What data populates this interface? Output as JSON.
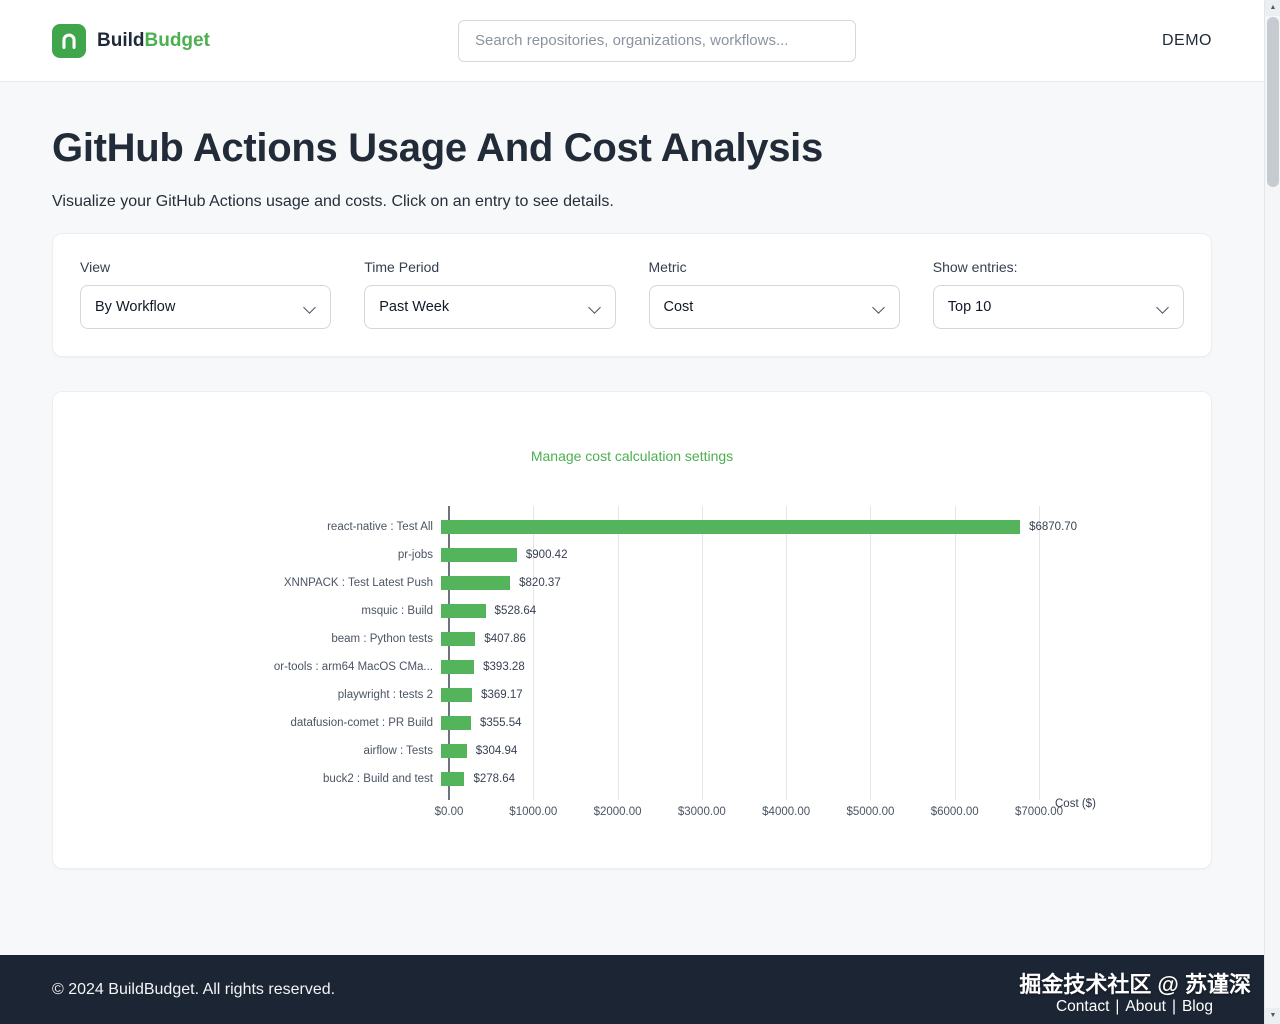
{
  "header": {
    "brand_prefix": "Build",
    "brand_suffix": "Budget",
    "search_placeholder": "Search repositories, organizations, workflows...",
    "demo_label": "DEMO"
  },
  "page": {
    "title": "GitHub Actions Usage And Cost Analysis",
    "subtitle": "Visualize your GitHub Actions usage and costs. Click on an entry to see details."
  },
  "filters": [
    {
      "label": "View",
      "value": "By Workflow"
    },
    {
      "label": "Time Period",
      "value": "Past Week"
    },
    {
      "label": "Metric",
      "value": "Cost"
    },
    {
      "label": "Show entries:",
      "value": "Top 10"
    }
  ],
  "chart": {
    "settings_link": "Manage cost calculation settings"
  },
  "chart_data": {
    "type": "bar",
    "orientation": "horizontal",
    "categories": [
      "react-native : Test All",
      "pr-jobs",
      "XNNPACK : Test Latest Push",
      "msquic : Build",
      "beam : Python tests",
      "or-tools : arm64 MacOS CMa...",
      "playwright : tests 2",
      "datafusion-comet : PR Build",
      "airflow : Tests",
      "buck2 : Build and test"
    ],
    "values": [
      6870.7,
      900.42,
      820.37,
      528.64,
      407.86,
      393.28,
      369.17,
      355.54,
      304.94,
      278.64
    ],
    "value_labels": [
      "$6870.70",
      "$900.42",
      "$820.37",
      "$528.64",
      "$407.86",
      "$393.28",
      "$369.17",
      "$355.54",
      "$304.94",
      "$278.64"
    ],
    "x_ticks": [
      {
        "label": "$0.00",
        "value": 0
      },
      {
        "label": "$1000.00",
        "value": 1000
      },
      {
        "label": "$2000.00",
        "value": 2000
      },
      {
        "label": "$3000.00",
        "value": 3000
      },
      {
        "label": "$4000.00",
        "value": 4000
      },
      {
        "label": "$5000.00",
        "value": 5000
      },
      {
        "label": "$6000.00",
        "value": 6000
      },
      {
        "label": "$7000.00",
        "value": 7000
      }
    ],
    "xlabel": "Cost ($)",
    "xlim": [
      0,
      7000
    ],
    "grid": true,
    "bar_color": "#54b45c"
  },
  "footer": {
    "copyright": "© 2024 BuildBudget. All rights reserved.",
    "watermark": "掘金技术社区 @ 苏谨深",
    "links": [
      "Contact",
      "About",
      "Blog"
    ]
  },
  "colors": {
    "accent": "#4caf50",
    "bar": "#54b45c",
    "footer_bg": "#1c2533"
  }
}
